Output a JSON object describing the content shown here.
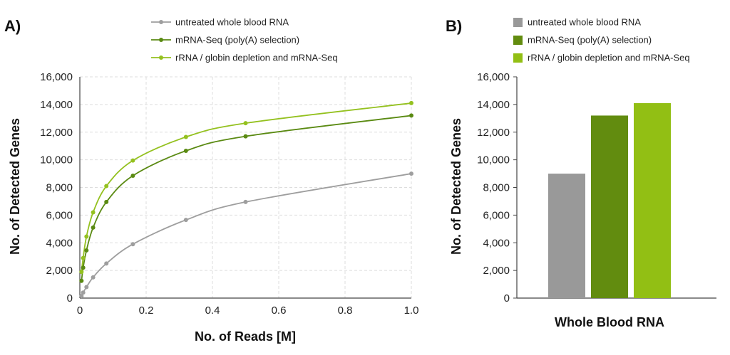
{
  "colors": {
    "untreated": "#9e9e9e",
    "mrna": "#5a8a12",
    "rrna": "#94c11f",
    "bar_untreated": "#999999",
    "bar_mrna": "#628c0f",
    "bar_rrna": "#92bf14",
    "grid": "#dddddd",
    "axis": "#444444"
  },
  "panels": {
    "a_label": "A)",
    "b_label": "B)"
  },
  "chart_data": [
    {
      "type": "line",
      "xlabel": "No. of Reads [M]",
      "ylabel": "No. of Detected Genes",
      "xlim": [
        0,
        1.0
      ],
      "ylim": [
        0,
        16000
      ],
      "xticks": [
        "0",
        "0.2",
        "0.4",
        "0.6",
        "0.8",
        "1.0"
      ],
      "xtick_values": [
        0,
        0.2,
        0.4,
        0.6,
        0.8,
        1.0
      ],
      "yticks": [
        "0",
        "2,000",
        "4,000",
        "6,000",
        "8,000",
        "10,000",
        "12,000",
        "14,000",
        "16,000"
      ],
      "ytick_values": [
        0,
        2000,
        4000,
        6000,
        8000,
        10000,
        12000,
        14000,
        16000
      ],
      "grid": true,
      "legend_position": "top-center",
      "series": [
        {
          "name": "untreated whole blood RNA",
          "color_key": "untreated",
          "x": [
            0.005,
            0.01,
            0.02,
            0.04,
            0.08,
            0.16,
            0.32,
            0.5,
            1.0
          ],
          "y": [
            150,
            400,
            800,
            1500,
            2500,
            3900,
            5650,
            6950,
            9000
          ]
        },
        {
          "name": "mRNA-Seq (poly(A) selection)",
          "color_key": "mrna",
          "x": [
            0.005,
            0.01,
            0.02,
            0.04,
            0.08,
            0.16,
            0.32,
            0.5,
            1.0
          ],
          "y": [
            1250,
            2200,
            3450,
            5100,
            6950,
            8850,
            10650,
            11700,
            13200
          ]
        },
        {
          "name": "rRNA / globin depletion and mRNA-Seq",
          "color_key": "rrna",
          "x": [
            0.005,
            0.01,
            0.02,
            0.04,
            0.08,
            0.16,
            0.32,
            0.5,
            1.0
          ],
          "y": [
            1900,
            2900,
            4450,
            6200,
            8100,
            9950,
            11650,
            12650,
            14100
          ]
        }
      ]
    },
    {
      "type": "bar",
      "xlabel": "Whole Blood RNA",
      "ylabel": "No. of Detected Genes",
      "ylim": [
        0,
        16000
      ],
      "yticks": [
        "0",
        "2,000",
        "4,000",
        "6,000",
        "8,000",
        "10,000",
        "12,000",
        "14,000",
        "16,000"
      ],
      "ytick_values": [
        0,
        2000,
        4000,
        6000,
        8000,
        10000,
        12000,
        14000,
        16000
      ],
      "grid": false,
      "legend_position": "top-center",
      "series": [
        {
          "name": "untreated whole blood RNA",
          "color_key": "bar_untreated",
          "value": 9000
        },
        {
          "name": "mRNA-Seq (poly(A) selection)",
          "color_key": "bar_mrna",
          "value": 13200
        },
        {
          "name": "rRNA / globin depletion and mRNA-Seq",
          "color_key": "bar_rrna",
          "value": 14100
        }
      ]
    }
  ]
}
